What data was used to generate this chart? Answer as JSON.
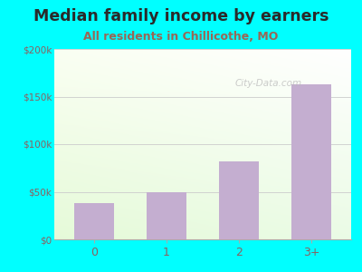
{
  "title": "Median family income by earners",
  "subtitle": "All residents in Chillicothe, MO",
  "categories": [
    "0",
    "1",
    "2",
    "3+"
  ],
  "values": [
    38000,
    50000,
    82000,
    163000
  ],
  "bar_color": "#c4aed0",
  "outer_bg": "#00FFFF",
  "title_color": "#2a2a2a",
  "subtitle_color": "#996655",
  "tick_color": "#8B6060",
  "ylim": [
    0,
    200000
  ],
  "yticks": [
    0,
    50000,
    100000,
    150000,
    200000
  ],
  "ytick_labels": [
    "$0",
    "$50k",
    "$100k",
    "$150k",
    "$200k"
  ],
  "title_fontsize": 12.5,
  "subtitle_fontsize": 9,
  "watermark": "City-Data.com"
}
